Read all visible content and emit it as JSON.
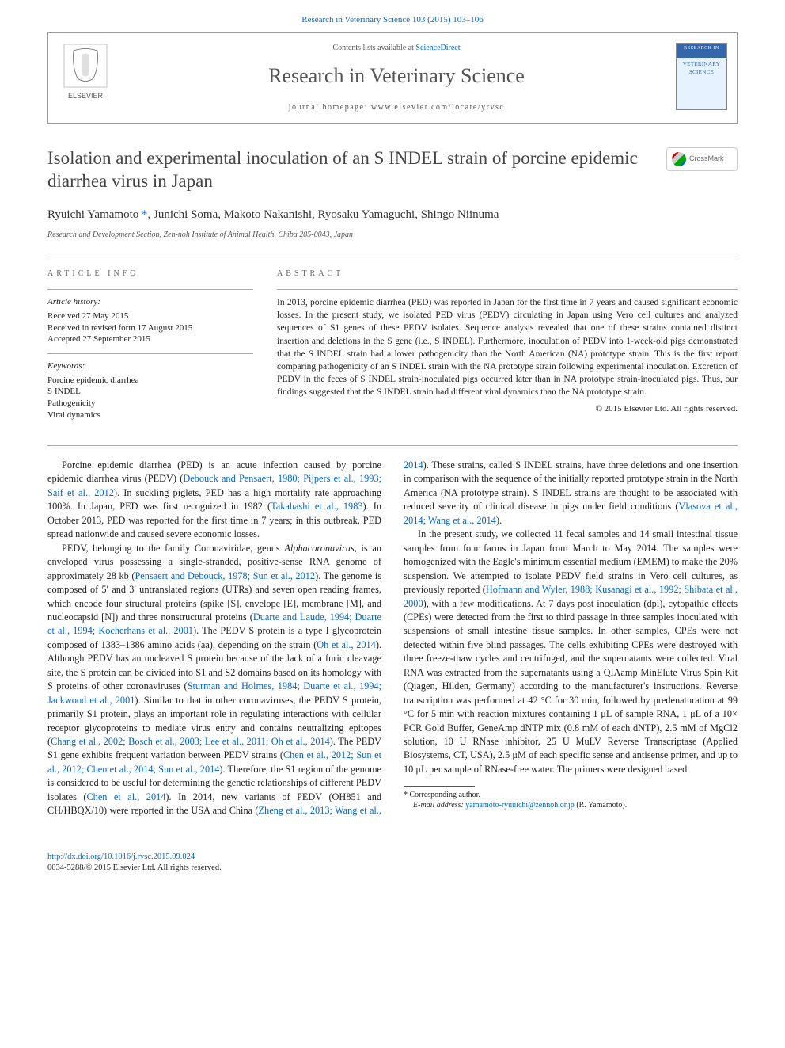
{
  "top_link": {
    "citation": "Research in Veterinary Science 103 (2015) 103–106",
    "color": "#0066cc"
  },
  "header": {
    "contents_prefix": "Contents lists available at ",
    "contents_link": "ScienceDirect",
    "journal_name": "Research in Veterinary Science",
    "homepage_prefix": "journal homepage: ",
    "homepage_url": "www.elsevier.com/locate/yrvsc",
    "elsevier_text": "ELSEVIER",
    "cover_top": "RESEARCH IN",
    "cover_title": "VETERINARY SCIENCE"
  },
  "article": {
    "title": "Isolation and experimental inoculation of an S INDEL strain of porcine epidemic diarrhea virus in Japan",
    "crossmark_label": "CrossMark",
    "authors_html": "Ryuichi Yamamoto <span class='corr'>*</span>, Junichi Soma, Makoto Nakanishi, Ryosaku Yamaguchi, Shingo Niinuma",
    "affiliation": "Research and Development Section, Zen-noh Institute of Animal Health, Chiba 285-0043, Japan"
  },
  "info": {
    "heading": "article info",
    "history_label": "Article history:",
    "history_text": "Received 27 May 2015\nReceived in revised form 17 August 2015\nAccepted 27 September 2015",
    "keywords_label": "Keywords:",
    "keywords_text": "Porcine epidemic diarrhea\nS INDEL\nPathogenicity\nViral dynamics"
  },
  "abstract": {
    "heading": "abstract",
    "text": "In 2013, porcine epidemic diarrhea (PED) was reported in Japan for the first time in 7 years and caused significant economic losses. In the present study, we isolated PED virus (PEDV) circulating in Japan using Vero cell cultures and analyzed sequences of S1 genes of these PEDV isolates. Sequence analysis revealed that one of these strains contained distinct insertion and deletions in the S gene (i.e., S INDEL). Furthermore, inoculation of PEDV into 1-week-old pigs demonstrated that the S INDEL strain had a lower pathogenicity than the North American (NA) prototype strain. This is the first report comparing pathogenicity of an S INDEL strain with the NA prototype strain following experimental inoculation. Excretion of PEDV in the feces of S INDEL strain-inoculated pigs occurred later than in NA prototype strain-inoculated pigs. Thus, our findings suggested that the S INDEL strain had different viral dynamics than the NA prototype strain.",
    "copyright": "© 2015 Elsevier Ltd. All rights reserved."
  },
  "body": {
    "p1_a": "Porcine epidemic diarrhea (PED) is an acute infection caused by porcine epidemic diarrhea virus (PEDV) (",
    "p1_r1": "Debouck and Pensaert, 1980; Pijpers et al., 1993; Saif et al., 2012",
    "p1_b": "). In suckling piglets, PED has a high mortality rate approaching 100%. In Japan, PED was first recognized in 1982 (",
    "p1_r2": "Takahashi et al., 1983",
    "p1_c": "). In October 2013, PED was reported for the first time in 7 years; in this outbreak, PED spread nationwide and caused severe economic losses.",
    "p2_a": "PEDV, belonging to the family Coronaviridae, genus ",
    "p2_i1": "Alphacoronavirus",
    "p2_b": ", is an enveloped virus possessing a single-stranded, positive-sense RNA genome of approximately 28 kb (",
    "p2_r1": "Pensaert and Debouck, 1978; Sun et al., 2012",
    "p2_c": "). The genome is composed of 5′ and 3′ untranslated regions (UTRs) and seven open reading frames, which encode four structural proteins (spike [S], envelope [E], membrane [M], and nucleocapsid [N]) and three nonstructural proteins (",
    "p2_r2": "Duarte and Laude, 1994; Duarte et al., 1994; Kocherhans et al., 2001",
    "p2_d": "). The PEDV S protein is a type I glycoprotein composed of 1383–1386 amino acids (aa), depending on the strain (",
    "p2_r3": "Oh et al., 2014",
    "p2_e": "). Although PEDV has an uncleaved S protein because of the lack of a furin cleavage site, the S protein can be divided into S1 and S2 domains based on its homology with S proteins of other coronaviruses (",
    "p2_r4": "Sturman and Holmes, 1984; Duarte et al., 1994; Jackwood et al., 2001",
    "p2_f": "). Similar to that in other coronaviruses, the PEDV S protein, primarily S1 protein, plays an important role in regulating interactions with cellular receptor glycoproteins to mediate virus entry and contains neutralizing epitopes (",
    "p2_r5": "Chang et al., 2002; Bosch et al., 2003; Lee et al., 2011; Oh et al., 2014",
    "p2_g": "). The PEDV S1 gene exhibits frequent variation between PEDV strains (",
    "p2_r6": "Chen et al., 2012; Sun et al., 2012; Chen et al., 2014; Sun et al., 2014",
    "p2_h": "). Therefore, the S1 region of ",
    "p3_a": "the genome is considered to be useful for determining the genetic relationships of different PEDV isolates (",
    "p3_r1": "Chen et al., 2014",
    "p3_b": "). In 2014, new variants of PEDV (OH851 and CH/HBQX/10) were reported in the USA and China (",
    "p3_r2": "Zheng et al., 2013; Wang et al., 2014",
    "p3_c": "). These strains, called S INDEL strains, have three deletions and one insertion in comparison with the sequence of the initially reported prototype strain in the North America (NA prototype strain). S INDEL strains are thought to be associated with reduced severity of clinical disease in pigs under field conditions (",
    "p3_r3": "Vlasova et al., 2014; Wang et al., 2014",
    "p3_d": ").",
    "p4_a": "In the present study, we collected 11 fecal samples and 14 small intestinal tissue samples from four farms in Japan from March to May 2014. The samples were homogenized with the Eagle's minimum essential medium (EMEM) to make the 20% suspension. We attempted to isolate PEDV field strains in Vero cell cultures, as previously reported (",
    "p4_r1": "Hofmann and Wyler, 1988; Kusanagi et al., 1992; Shibata et al., 2000",
    "p4_b": "), with a few modifications. At 7 days post inoculation (dpi), cytopathic effects (CPEs) were detected from the first to third passage in three samples inoculated with suspensions of small intestine tissue samples. In other samples, CPEs were not detected within five blind passages. The cells exhibiting CPEs were destroyed with three freeze-thaw cycles and centrifuged, and the supernatants were collected. Viral RNA was extracted from the supernatants using a QIAamp MinElute Virus Spin Kit (Qiagen, Hilden, Germany) according to the manufacturer's instructions. Reverse transcription was performed at 42 °C for 30 min, followed by predenaturation at 99 °C for 5 min with reaction mixtures containing 1 μL of sample RNA, 1 μL of a 10× PCR Gold Buffer, GeneAmp dNTP mix (0.8 mM of each dNTP), 2.5 mM of MgCl2 solution, 10 U RNase inhibitor, 25 U MuLV Reverse Transcriptase (Applied Biosystems, CT, USA), 2.5 μM of each specific sense and antisense primer, and up to 10 μL per sample of RNase-free water. The primers were designed based"
  },
  "footnote": {
    "corr_label": "* Corresponding author.",
    "email_label": "E-mail address: ",
    "email": "yamamoto-ryuuichi@zennoh.or.jp",
    "email_who": " (R. Yamamoto)."
  },
  "footer": {
    "doi": "http://dx.doi.org/10.1016/j.rvsc.2015.09.024",
    "issn_copy": "0034-5288/© 2015 Elsevier Ltd. All rights reserved."
  },
  "colors": {
    "link": "#0066cc",
    "text": "#222222",
    "heading_gray": "#555555",
    "border": "#999999"
  },
  "typography": {
    "title_fontsize": 23,
    "journal_fontsize": 26,
    "body_fontsize": 12.3,
    "abstract_fontsize": 11.5,
    "footnote_fontsize": 10
  }
}
